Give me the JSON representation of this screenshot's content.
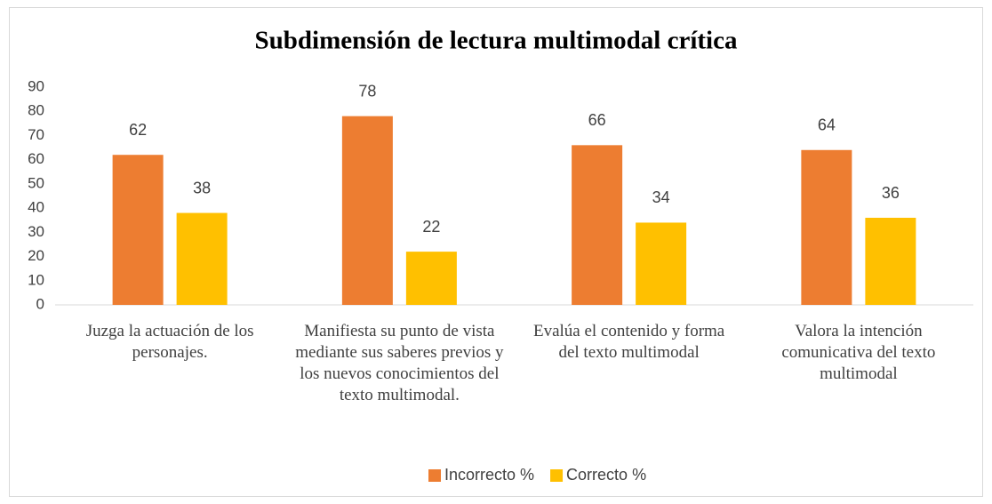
{
  "chart_data": {
    "type": "bar",
    "title": "Subdimensión de lectura multimodal crítica",
    "categories": [
      "Juzga la actuación de los personajes.",
      "Manifiesta su punto de vista mediante sus saberes previos y los nuevos conocimientos del texto multimodal.",
      "Evalúa el contenido y forma del texto multimodal",
      "Valora la intención comunicativa del texto multimodal"
    ],
    "series": [
      {
        "name": "Incorrecto %",
        "color": "#ed7d31",
        "values": [
          62,
          78,
          66,
          64
        ]
      },
      {
        "name": "Correcto %",
        "color": "#ffc000",
        "values": [
          38,
          22,
          34,
          36
        ]
      }
    ],
    "ylim": [
      0,
      90
    ],
    "yticks": [
      0,
      10,
      20,
      30,
      40,
      50,
      60,
      70,
      80,
      90
    ],
    "grid": false,
    "legend": "bottom"
  }
}
